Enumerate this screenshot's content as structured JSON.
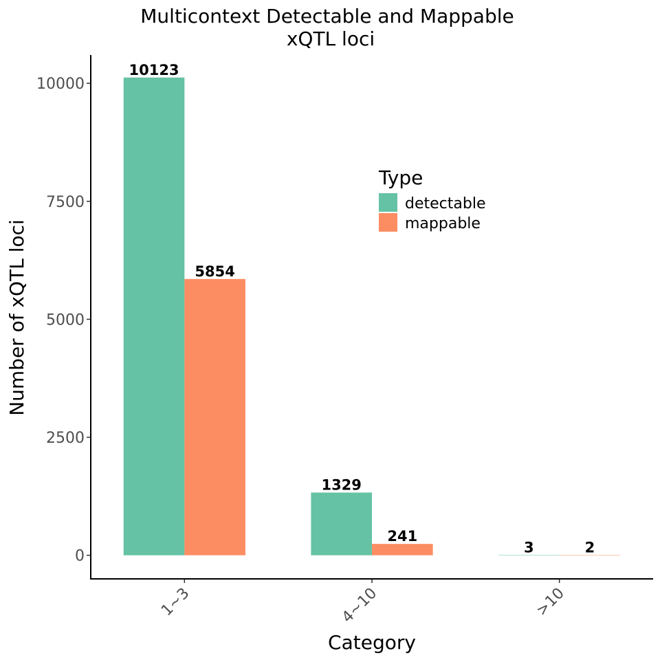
{
  "chart_data": {
    "type": "bar",
    "title": "Multicontext Detectable and Mappable",
    "subtitle": "xQTL loci",
    "xlabel": "Category",
    "ylabel": "Number of xQTL loci",
    "categories": [
      "1~3",
      "4~10",
      ">10"
    ],
    "series": [
      {
        "name": "detectable",
        "color": "#66c2a5",
        "values": [
          10123,
          1329,
          3
        ]
      },
      {
        "name": "mappable",
        "color": "#fc8d62",
        "values": [
          5854,
          241,
          2
        ]
      }
    ],
    "ylim": [
      -500,
      10600
    ],
    "yticks": [
      0,
      2500,
      5000,
      7500,
      10000
    ],
    "ytick_labels": [
      "0",
      "2500",
      "5000",
      "7500",
      "10000"
    ],
    "data_labels": [
      [
        "10123",
        "1329",
        "3"
      ],
      [
        "5854",
        "241",
        "2"
      ]
    ],
    "legend": {
      "title": "Type",
      "entries": [
        "detectable",
        "mappable"
      ],
      "position": "inside-top-right"
    },
    "grid": false
  }
}
